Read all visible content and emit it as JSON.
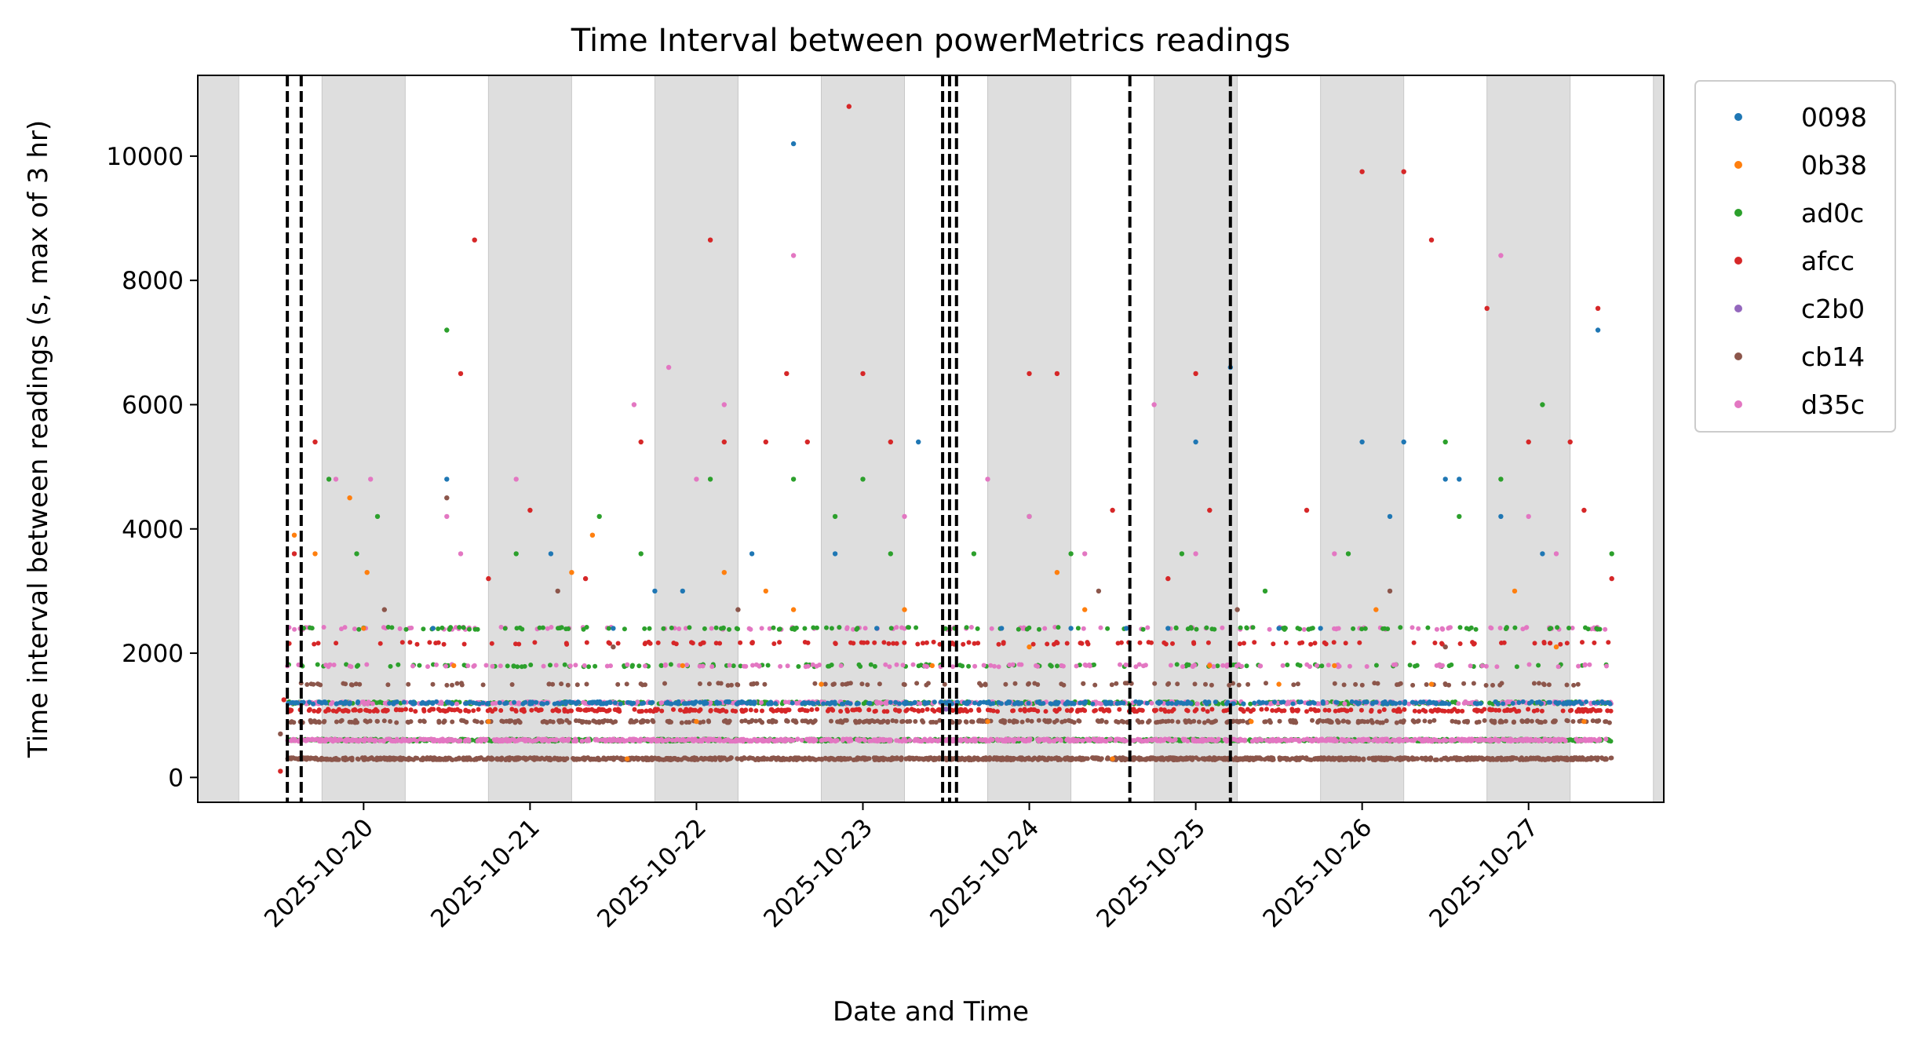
{
  "chart_data": {
    "type": "scatter",
    "title": "Time Interval between powerMetrics readings",
    "xlabel": "Date and Time",
    "ylabel": "Time interval between readings (s, max of 3 hr)",
    "x_type": "datetime",
    "xlim": [
      "2025-10-19 00:05",
      "2025-10-27 19:30"
    ],
    "ylim": [
      -400,
      11300
    ],
    "x_ticks": [
      "2025-10-20",
      "2025-10-21",
      "2025-10-22",
      "2025-10-23",
      "2025-10-24",
      "2025-10-25",
      "2025-10-26",
      "2025-10-27"
    ],
    "y_ticks": [
      0,
      2000,
      4000,
      6000,
      8000,
      10000
    ],
    "grid": false,
    "legend_position": "outside-top-right",
    "night_bands": [
      [
        "2025-10-19 00:05",
        "2025-10-19 06:00"
      ],
      [
        "2025-10-19 18:00",
        "2025-10-20 06:00"
      ],
      [
        "2025-10-20 18:00",
        "2025-10-21 06:00"
      ],
      [
        "2025-10-21 18:00",
        "2025-10-22 06:00"
      ],
      [
        "2025-10-22 18:00",
        "2025-10-23 06:00"
      ],
      [
        "2025-10-23 18:00",
        "2025-10-24 06:00"
      ],
      [
        "2025-10-24 18:00",
        "2025-10-25 06:00"
      ],
      [
        "2025-10-25 18:00",
        "2025-10-26 06:00"
      ],
      [
        "2025-10-26 18:00",
        "2025-10-27 06:00"
      ],
      [
        "2025-10-27 18:00",
        "2025-10-27 19:30"
      ]
    ],
    "vlines": [
      "2025-10-19 13:00",
      "2025-10-19 15:00",
      "2025-10-23 11:30",
      "2025-10-23 12:30",
      "2025-10-23 13:30",
      "2025-10-24 14:30",
      "2025-10-25 05:00"
    ],
    "baseline_levels": [
      {
        "y": 300,
        "series": "cb14"
      },
      {
        "y": 600,
        "series": "ad0c"
      },
      {
        "y": 600,
        "series": "d35c"
      },
      {
        "y": 900,
        "series": "cb14"
      },
      {
        "y": 1080,
        "series": "afcc"
      },
      {
        "y": 1200,
        "series": "ad0c"
      },
      {
        "y": 1200,
        "series": "d35c"
      },
      {
        "y": 1200,
        "series": "0098"
      },
      {
        "y": 1500,
        "series": "cb14"
      },
      {
        "y": 1800,
        "series": "ad0c"
      },
      {
        "y": 1800,
        "series": "d35c"
      },
      {
        "y": 2160,
        "series": "afcc"
      },
      {
        "y": 2400,
        "series": "d35c"
      },
      {
        "y": 2400,
        "series": "ad0c"
      }
    ],
    "series": [
      {
        "name": "0098",
        "color": "#1f77b4",
        "points": [
          [
            "2025-10-19 14:00",
            1200
          ],
          [
            "2025-10-19 18:00",
            1200
          ],
          [
            "2025-10-20 10:00",
            2400
          ],
          [
            "2025-10-20 12:00",
            4800
          ],
          [
            "2025-10-21 03:00",
            3600
          ],
          [
            "2025-10-21 12:00",
            2400
          ],
          [
            "2025-10-21 18:00",
            3000
          ],
          [
            "2025-10-21 22:00",
            3000
          ],
          [
            "2025-10-22 08:00",
            3600
          ],
          [
            "2025-10-22 14:00",
            10200
          ],
          [
            "2025-10-22 20:00",
            3600
          ],
          [
            "2025-10-23 02:00",
            2400
          ],
          [
            "2025-10-23 08:00",
            5400
          ],
          [
            "2025-10-23 20:00",
            2400
          ],
          [
            "2025-10-24 06:00",
            2400
          ],
          [
            "2025-10-24 14:00",
            2400
          ],
          [
            "2025-10-24 20:00",
            2400
          ],
          [
            "2025-10-25 00:00",
            5400
          ],
          [
            "2025-10-25 05:00",
            6600
          ],
          [
            "2025-10-25 12:00",
            2400
          ],
          [
            "2025-10-25 18:00",
            2400
          ],
          [
            "2025-10-26 00:00",
            5400
          ],
          [
            "2025-10-26 04:00",
            4200
          ],
          [
            "2025-10-26 06:00",
            5400
          ],
          [
            "2025-10-26 12:00",
            4800
          ],
          [
            "2025-10-26 14:00",
            4800
          ],
          [
            "2025-10-26 20:00",
            4200
          ],
          [
            "2025-10-27 02:00",
            3600
          ],
          [
            "2025-10-27 10:00",
            7200
          ],
          [
            "2025-10-27 06:00",
            1200
          ]
        ]
      },
      {
        "name": "0b38",
        "color": "#ff7f0e",
        "points": [
          [
            "2025-10-19 14:00",
            3900
          ],
          [
            "2025-10-19 17:00",
            3600
          ],
          [
            "2025-10-20 00:00",
            2400
          ],
          [
            "2025-10-19 22:00",
            4500
          ],
          [
            "2025-10-20 00:30",
            3300
          ],
          [
            "2025-10-20 13:00",
            1800
          ],
          [
            "2025-10-21 06:00",
            3300
          ],
          [
            "2025-10-21 09:00",
            3900
          ],
          [
            "2025-10-21 22:00",
            1800
          ],
          [
            "2025-10-22 04:00",
            3300
          ],
          [
            "2025-10-22 10:00",
            3000
          ],
          [
            "2025-10-22 14:00",
            2700
          ],
          [
            "2025-10-22 18:00",
            1500
          ],
          [
            "2025-10-23 06:00",
            2700
          ],
          [
            "2025-10-23 10:00",
            1800
          ],
          [
            "2025-10-24 00:00",
            2100
          ],
          [
            "2025-10-24 04:00",
            3300
          ],
          [
            "2025-10-24 08:00",
            2700
          ],
          [
            "2025-10-25 02:00",
            1800
          ],
          [
            "2025-10-25 12:00",
            1500
          ],
          [
            "2025-10-25 20:00",
            1800
          ],
          [
            "2025-10-26 02:00",
            2700
          ],
          [
            "2025-10-26 10:00",
            1500
          ],
          [
            "2025-10-26 22:00",
            3000
          ],
          [
            "2025-10-27 04:00",
            2100
          ],
          [
            "2025-10-27 08:00",
            900
          ],
          [
            "2025-10-20 18:00",
            900
          ],
          [
            "2025-10-22 00:00",
            900
          ],
          [
            "2025-10-23 18:00",
            900
          ],
          [
            "2025-10-25 08:00",
            900
          ],
          [
            "2025-10-21 14:00",
            300
          ],
          [
            "2025-10-24 12:00",
            300
          ]
        ]
      },
      {
        "name": "ad0c",
        "color": "#2ca02c",
        "points": [
          [
            "2025-10-19 19:00",
            4800
          ],
          [
            "2025-10-19 23:00",
            3600
          ],
          [
            "2025-10-20 02:00",
            4200
          ],
          [
            "2025-10-20 12:00",
            7200
          ],
          [
            "2025-10-20 22:00",
            3600
          ],
          [
            "2025-10-21 10:00",
            4200
          ],
          [
            "2025-10-21 16:00",
            3600
          ],
          [
            "2025-10-22 02:00",
            4800
          ],
          [
            "2025-10-22 14:00",
            4800
          ],
          [
            "2025-10-22 20:00",
            4200
          ],
          [
            "2025-10-23 00:00",
            4800
          ],
          [
            "2025-10-23 04:00",
            3600
          ],
          [
            "2025-10-23 16:00",
            3600
          ],
          [
            "2025-10-24 00:00",
            4200
          ],
          [
            "2025-10-24 06:00",
            3600
          ],
          [
            "2025-10-24 22:00",
            3600
          ],
          [
            "2025-10-25 10:00",
            3000
          ],
          [
            "2025-10-25 22:00",
            3600
          ],
          [
            "2025-10-26 12:00",
            5400
          ],
          [
            "2025-10-26 20:00",
            4800
          ],
          [
            "2025-10-27 02:00",
            6000
          ],
          [
            "2025-10-27 12:00",
            3600
          ],
          [
            "2025-10-26 14:00",
            4200
          ]
        ]
      },
      {
        "name": "afcc",
        "color": "#d62728",
        "points": [
          [
            "2025-10-19 12:00",
            100
          ],
          [
            "2025-10-19 12:30",
            1250
          ],
          [
            "2025-10-19 17:00",
            5400
          ],
          [
            "2025-10-19 14:00",
            3600
          ],
          [
            "2025-10-20 14:00",
            6500
          ],
          [
            "2025-10-20 16:00",
            8650
          ],
          [
            "2025-10-20 18:00",
            3200
          ],
          [
            "2025-10-21 00:00",
            4300
          ],
          [
            "2025-10-21 08:00",
            3200
          ],
          [
            "2025-10-21 16:00",
            5400
          ],
          [
            "2025-10-22 02:00",
            8650
          ],
          [
            "2025-10-22 04:00",
            5400
          ],
          [
            "2025-10-22 10:00",
            5400
          ],
          [
            "2025-10-22 13:00",
            6500
          ],
          [
            "2025-10-22 16:00",
            5400
          ],
          [
            "2025-10-22 22:00",
            10800
          ],
          [
            "2025-10-23 00:00",
            6500
          ],
          [
            "2025-10-23 04:00",
            5400
          ],
          [
            "2025-10-24 00:00",
            6500
          ],
          [
            "2025-10-24 04:00",
            6500
          ],
          [
            "2025-10-24 12:00",
            4300
          ],
          [
            "2025-10-24 20:00",
            3200
          ],
          [
            "2025-10-25 00:00",
            6500
          ],
          [
            "2025-10-25 02:00",
            4300
          ],
          [
            "2025-10-25 16:00",
            4300
          ],
          [
            "2025-10-26 00:00",
            9750
          ],
          [
            "2025-10-26 06:00",
            9750
          ],
          [
            "2025-10-26 10:00",
            8650
          ],
          [
            "2025-10-26 18:00",
            7550
          ],
          [
            "2025-10-27 00:00",
            5400
          ],
          [
            "2025-10-27 06:00",
            5400
          ],
          [
            "2025-10-27 10:00",
            7550
          ],
          [
            "2025-10-27 08:00",
            4300
          ],
          [
            "2025-10-27 12:00",
            3200
          ]
        ]
      },
      {
        "name": "c2b0",
        "color": "#9467bd",
        "points": [
          [
            "2025-10-23 12:00",
            1100
          ]
        ]
      },
      {
        "name": "cb14",
        "color": "#8c564b",
        "points": [
          [
            "2025-10-19 12:00",
            700
          ],
          [
            "2025-10-20 03:00",
            2700
          ],
          [
            "2025-10-20 12:00",
            4500
          ],
          [
            "2025-10-21 04:00",
            3000
          ],
          [
            "2025-10-21 12:00",
            2100
          ],
          [
            "2025-10-22 06:00",
            2700
          ],
          [
            "2025-10-24 10:00",
            3000
          ],
          [
            "2025-10-25 06:00",
            2700
          ],
          [
            "2025-10-26 04:00",
            3000
          ],
          [
            "2025-10-26 12:00",
            2100
          ]
        ]
      },
      {
        "name": "d35c",
        "color": "#e377c2",
        "points": [
          [
            "2025-10-19 20:00",
            4800
          ],
          [
            "2025-10-20 01:00",
            4800
          ],
          [
            "2025-10-20 12:00",
            4200
          ],
          [
            "2025-10-20 14:00",
            3600
          ],
          [
            "2025-10-20 22:00",
            4800
          ],
          [
            "2025-10-21 15:00",
            6000
          ],
          [
            "2025-10-21 20:00",
            6600
          ],
          [
            "2025-10-22 00:00",
            4800
          ],
          [
            "2025-10-22 04:00",
            6000
          ],
          [
            "2025-10-22 14:00",
            8400
          ],
          [
            "2025-10-23 06:00",
            4200
          ],
          [
            "2025-10-23 18:00",
            4800
          ],
          [
            "2025-10-24 00:00",
            4200
          ],
          [
            "2025-10-24 08:00",
            3600
          ],
          [
            "2025-10-24 18:00",
            6000
          ],
          [
            "2025-10-25 00:00",
            3600
          ],
          [
            "2025-10-25 20:00",
            3600
          ],
          [
            "2025-10-26 20:00",
            8400
          ],
          [
            "2025-10-27 00:00",
            4200
          ],
          [
            "2025-10-27 04:00",
            3600
          ]
        ]
      }
    ]
  }
}
